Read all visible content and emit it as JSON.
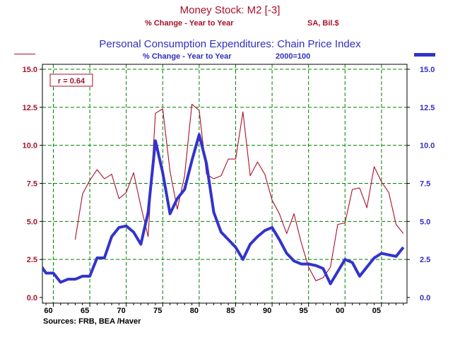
{
  "header": {
    "title1": "Money Stock: M2 [-3]",
    "subtitle1_left": "% Change - Year to Year",
    "subtitle1_right": "SA, Bil.$",
    "title2": "Personal Consumption Expenditures: Chain Price Index",
    "subtitle2_left": "% Change - Year to Year",
    "subtitle2_right": "2000=100"
  },
  "footer": {
    "source": "Sources:  FRB, BEA /Haver"
  },
  "colors": {
    "m2": "#a8102a",
    "pce": "#3333cc",
    "grid": "#008000",
    "axis": "#000000"
  },
  "chart_data": {
    "type": "line",
    "annotation": "r = 0.64",
    "xlim": [
      1958.5,
      2008.5
    ],
    "ylim_left": [
      0,
      15
    ],
    "ylim_right": [
      0,
      15
    ],
    "x_ticks": [
      {
        "value": 1960,
        "label": "60"
      },
      {
        "value": 1965,
        "label": "65"
      },
      {
        "value": 1970,
        "label": "70"
      },
      {
        "value": 1975,
        "label": "75"
      },
      {
        "value": 1980,
        "label": "80"
      },
      {
        "value": 1985,
        "label": "85"
      },
      {
        "value": 1990,
        "label": "90"
      },
      {
        "value": 1995,
        "label": "95"
      },
      {
        "value": 2000,
        "label": "00"
      },
      {
        "value": 2005,
        "label": "05"
      }
    ],
    "y_ticks_left": [
      "0.0",
      "2.5",
      "5.0",
      "7.5",
      "10.0",
      "12.5",
      "15.0"
    ],
    "y_ticks_right": [
      "0.0",
      "2.5",
      "5.0",
      "7.5",
      "10.0",
      "12.5",
      "15.0"
    ],
    "series": [
      {
        "name": "Money Stock: M2 [-3]",
        "axis": "left",
        "x": [
          1963,
          1964,
          1965,
          1966,
          1967,
          1968,
          1969,
          1970,
          1971,
          1972,
          1973,
          1974,
          1975,
          1976,
          1977,
          1978,
          1979,
          1980,
          1981,
          1982,
          1983,
          1984,
          1985,
          1986,
          1987,
          1988,
          1989,
          1990,
          1991,
          1992,
          1993,
          1994,
          1995,
          1996,
          1997,
          1998,
          1999,
          2000,
          2001,
          2002,
          2003,
          2004,
          2005,
          2006,
          2007,
          2008
        ],
        "values": [
          3.8,
          6.8,
          7.7,
          8.4,
          7.8,
          8.1,
          6.5,
          6.9,
          8.2,
          6.0,
          4.0,
          12.1,
          12.4,
          8.3,
          5.8,
          8.0,
          12.7,
          12.3,
          8.1,
          7.8,
          8.0,
          9.1,
          9.1,
          12.2,
          8.0,
          8.9,
          8.1,
          6.4,
          5.5,
          4.2,
          5.5,
          3.6,
          2.0,
          1.1,
          1.3,
          2.0,
          4.8,
          4.9,
          7.1,
          7.2,
          5.9,
          8.6,
          7.6,
          6.9,
          4.8,
          4.2
        ]
      },
      {
        "name": "Personal Consumption Expenditures: Chain Price Index",
        "axis": "right",
        "x": [
          1958,
          1959,
          1960,
          1961,
          1962,
          1963,
          1964,
          1965,
          1966,
          1967,
          1968,
          1969,
          1970,
          1971,
          1972,
          1973,
          1974,
          1975,
          1976,
          1977,
          1978,
          1979,
          1980,
          1981,
          1982,
          1983,
          1984,
          1985,
          1986,
          1987,
          1988,
          1989,
          1990,
          1991,
          1992,
          1993,
          1994,
          1995,
          1996,
          1997,
          1998,
          1999,
          2000,
          2001,
          2002,
          2003,
          2004,
          2005,
          2006,
          2007,
          2008
        ],
        "values": [
          2.3,
          1.6,
          1.6,
          1.0,
          1.2,
          1.2,
          1.4,
          1.4,
          2.6,
          2.6,
          4.0,
          4.6,
          4.7,
          4.3,
          3.5,
          5.6,
          10.3,
          8.2,
          5.5,
          6.5,
          7.1,
          9.0,
          10.7,
          8.8,
          5.6,
          4.3,
          3.8,
          3.3,
          2.5,
          3.5,
          4.0,
          4.4,
          4.6,
          3.8,
          2.9,
          2.4,
          2.2,
          2.2,
          2.1,
          1.9,
          0.9,
          1.7,
          2.5,
          2.3,
          1.4,
          2.0,
          2.6,
          2.9,
          2.8,
          2.7,
          3.3
        ]
      }
    ]
  }
}
